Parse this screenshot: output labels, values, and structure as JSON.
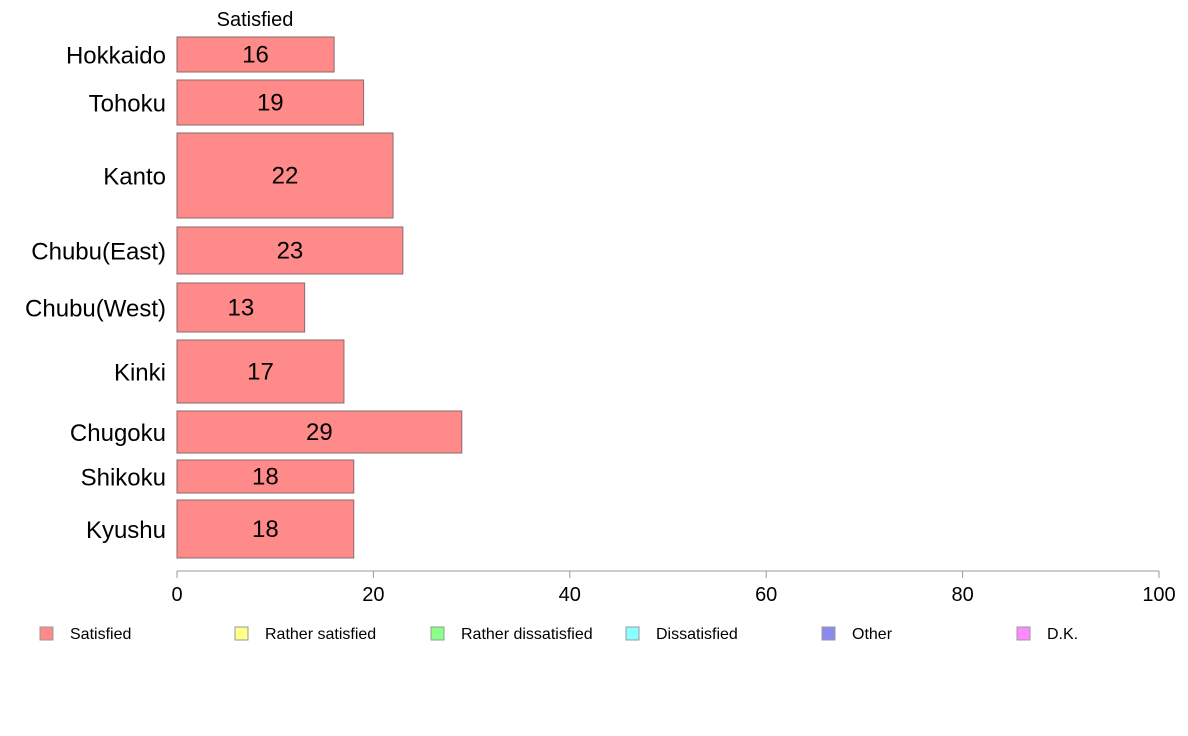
{
  "chart_data": {
    "type": "bar",
    "orientation": "horizontal",
    "categories": [
      "Hokkaido",
      "Tohoku",
      "Kanto",
      "Chubu(East)",
      "Chubu(West)",
      "Kinki",
      "Chugoku",
      "Shikoku",
      "Kyushu"
    ],
    "series": [
      {
        "name": "Satisfied",
        "values": [
          16,
          19,
          22,
          23,
          13,
          17,
          29,
          18,
          18
        ]
      }
    ],
    "series_header": "Satisfied",
    "xlim": [
      0,
      100
    ],
    "xticks": [
      0,
      20,
      40,
      60,
      80,
      100
    ],
    "grid": false,
    "legend_position": "bottom",
    "legend": [
      {
        "label": "Satisfied",
        "color": "#ff8a8a"
      },
      {
        "label": "Rather satisfied",
        "color": "#ffff8a"
      },
      {
        "label": "Rather dissatisfied",
        "color": "#8aff8a"
      },
      {
        "label": "Dissatisfied",
        "color": "#8affff"
      },
      {
        "label": "Other",
        "color": "#8a8aee"
      },
      {
        "label": "D.K.",
        "color": "#ff8aff"
      }
    ]
  }
}
